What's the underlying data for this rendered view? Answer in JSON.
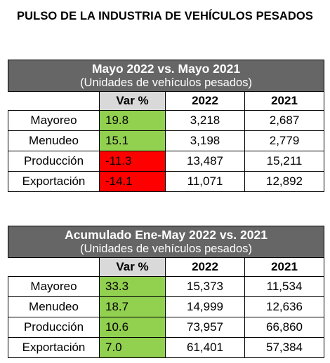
{
  "title": "PULSO DE LA INDUSTRIA DE VEHÍCULOS PESADOS",
  "tables": [
    {
      "heading": "Mayo 2022 vs. Mayo 2021",
      "subheading": "(Unidades de vehículos pesados)",
      "columns": [
        "Var %",
        "2022",
        "2021"
      ],
      "rows": [
        {
          "label": "Mayoreo",
          "var": "19.8",
          "y2022": "3,218",
          "y2021": "2,687"
        },
        {
          "label": "Menudeo",
          "var": "15.1",
          "y2022": "3,198",
          "y2021": "2,779"
        },
        {
          "label": "Producción",
          "var": "-11.3",
          "y2022": "13,487",
          "y2021": "15,211"
        },
        {
          "label": "Exportación",
          "var": "-14.1",
          "y2022": "11,071",
          "y2021": "12,892"
        }
      ]
    },
    {
      "heading": "Acumulado Ene-May 2022 vs. 2021",
      "subheading": "(Unidades de vehículos pesados)",
      "columns": [
        "Var %",
        "2022",
        "2021"
      ],
      "rows": [
        {
          "label": "Mayoreo",
          "var": "33.3",
          "y2022": "15,373",
          "y2021": "11,534"
        },
        {
          "label": "Menudeo",
          "var": "18.7",
          "y2022": "14,999",
          "y2021": "12,636"
        },
        {
          "label": "Producción",
          "var": "10.6",
          "y2022": "73,957",
          "y2021": "66,860"
        },
        {
          "label": "Exportación",
          "var": "7.0",
          "y2022": "61,401",
          "y2021": "57,384"
        }
      ]
    }
  ],
  "colors": {
    "positive": "#92d050",
    "negative": "#ff0000",
    "header": "#666666",
    "var_header": "#d9d9d9"
  }
}
